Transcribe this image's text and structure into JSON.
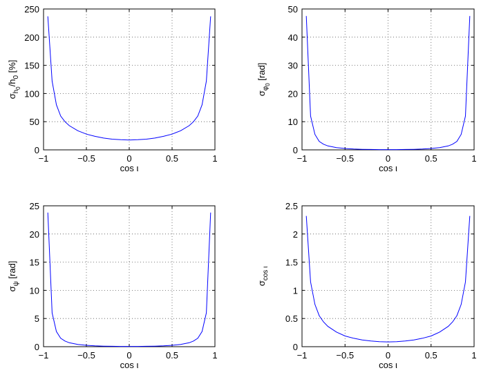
{
  "chart_data": [
    {
      "type": "line",
      "xlabel": "cos ι",
      "ylabel": "σh0/h0 [%]",
      "ylabel_parts": {
        "main": "σ",
        "sub1": "h",
        "sub2": "0",
        "mid": "/h",
        "sub3": "0",
        "tail": " [%]"
      },
      "xlim": [
        -1,
        1
      ],
      "ylim": [
        0,
        250
      ],
      "xticks": [
        -1,
        -0.5,
        0,
        0.5,
        1
      ],
      "xtick_labels": [
        "−1",
        "−0.5",
        "0",
        "0.5",
        "1"
      ],
      "yticks": [
        0,
        50,
        100,
        150,
        200,
        250
      ],
      "ytick_labels": [
        "0",
        "50",
        "100",
        "150",
        "200",
        "250"
      ],
      "grid": true,
      "line_color": "#0000ff",
      "x": [
        -0.95,
        -0.9,
        -0.85,
        -0.8,
        -0.75,
        -0.7,
        -0.6,
        -0.5,
        -0.4,
        -0.3,
        -0.2,
        -0.1,
        0,
        0.1,
        0.2,
        0.3,
        0.4,
        0.5,
        0.6,
        0.7,
        0.75,
        0.8,
        0.85,
        0.9,
        0.95
      ],
      "y": [
        237,
        122,
        80,
        60,
        50,
        43,
        34,
        28,
        24,
        21,
        19,
        18,
        17.5,
        18,
        19,
        21,
        24,
        28,
        34,
        43,
        50,
        60,
        80,
        122,
        237
      ]
    },
    {
      "type": "line",
      "xlabel": "cos ι",
      "ylabel": "σφ0 [rad]",
      "ylabel_parts": {
        "main": "σ",
        "sub1": "φ",
        "sub2": "0",
        "tail": " [rad]"
      },
      "xlim": [
        -1,
        1
      ],
      "ylim": [
        0,
        50
      ],
      "xticks": [
        -1,
        -0.5,
        0,
        0.5,
        1
      ],
      "xtick_labels": [
        "−1",
        "−0.5",
        "0",
        "0.5",
        "1"
      ],
      "yticks": [
        0,
        10,
        20,
        30,
        40,
        50
      ],
      "ytick_labels": [
        "0",
        "10",
        "20",
        "30",
        "40",
        "50"
      ],
      "grid": true,
      "line_color": "#0000ff",
      "x": [
        -0.95,
        -0.9,
        -0.85,
        -0.8,
        -0.75,
        -0.7,
        -0.6,
        -0.5,
        -0.4,
        -0.3,
        -0.2,
        -0.1,
        0,
        0.1,
        0.2,
        0.3,
        0.4,
        0.5,
        0.6,
        0.7,
        0.75,
        0.8,
        0.85,
        0.9,
        0.95
      ],
      "y": [
        47.5,
        12,
        5.5,
        3,
        2,
        1.4,
        0.8,
        0.5,
        0.3,
        0.2,
        0.15,
        0.1,
        0.1,
        0.1,
        0.15,
        0.2,
        0.3,
        0.5,
        0.8,
        1.4,
        2,
        3,
        5.5,
        12,
        47.5
      ]
    },
    {
      "type": "line",
      "xlabel": "cos ι",
      "ylabel": "σψ [rad]",
      "ylabel_parts": {
        "main": "σ",
        "sub1": "ψ",
        "tail": " [rad]"
      },
      "xlim": [
        -1,
        1
      ],
      "ylim": [
        0,
        25
      ],
      "xticks": [
        -1,
        -0.5,
        0,
        0.5,
        1
      ],
      "xtick_labels": [
        "−1",
        "−0.5",
        "0",
        "0.5",
        "1"
      ],
      "yticks": [
        0,
        5,
        10,
        15,
        20,
        25
      ],
      "ytick_labels": [
        "0",
        "5",
        "10",
        "15",
        "20",
        "25"
      ],
      "grid": true,
      "line_color": "#0000ff",
      "x": [
        -0.95,
        -0.9,
        -0.85,
        -0.8,
        -0.75,
        -0.7,
        -0.6,
        -0.5,
        -0.4,
        -0.3,
        -0.2,
        -0.1,
        0,
        0.1,
        0.2,
        0.3,
        0.4,
        0.5,
        0.6,
        0.7,
        0.75,
        0.8,
        0.85,
        0.9,
        0.95
      ],
      "y": [
        23.8,
        6,
        2.7,
        1.5,
        1,
        0.7,
        0.4,
        0.25,
        0.15,
        0.1,
        0.07,
        0.05,
        0.05,
        0.05,
        0.07,
        0.1,
        0.15,
        0.25,
        0.4,
        0.7,
        1,
        1.5,
        2.7,
        6,
        23.8
      ]
    },
    {
      "type": "line",
      "xlabel": "cos ι",
      "ylabel": "σcos ι",
      "ylabel_parts": {
        "main": "σ",
        "sub1": "cos ι"
      },
      "xlim": [
        -1,
        1
      ],
      "ylim": [
        0,
        2.5
      ],
      "xticks": [
        -1,
        -0.5,
        0,
        0.5,
        1
      ],
      "xtick_labels": [
        "−1",
        "−0.5",
        "0",
        "0.5",
        "1"
      ],
      "yticks": [
        0,
        0.5,
        1,
        1.5,
        2,
        2.5
      ],
      "ytick_labels": [
        "0",
        "0.5",
        "1",
        "1.5",
        "2",
        "2.5"
      ],
      "grid": true,
      "line_color": "#0000ff",
      "x": [
        -0.95,
        -0.9,
        -0.85,
        -0.8,
        -0.75,
        -0.7,
        -0.6,
        -0.5,
        -0.4,
        -0.3,
        -0.2,
        -0.1,
        0,
        0.1,
        0.2,
        0.3,
        0.4,
        0.5,
        0.6,
        0.7,
        0.75,
        0.8,
        0.85,
        0.9,
        0.95
      ],
      "y": [
        2.32,
        1.15,
        0.75,
        0.55,
        0.44,
        0.36,
        0.26,
        0.19,
        0.15,
        0.12,
        0.1,
        0.09,
        0.085,
        0.09,
        0.1,
        0.12,
        0.15,
        0.19,
        0.26,
        0.36,
        0.44,
        0.55,
        0.75,
        1.15,
        2.32
      ]
    }
  ]
}
